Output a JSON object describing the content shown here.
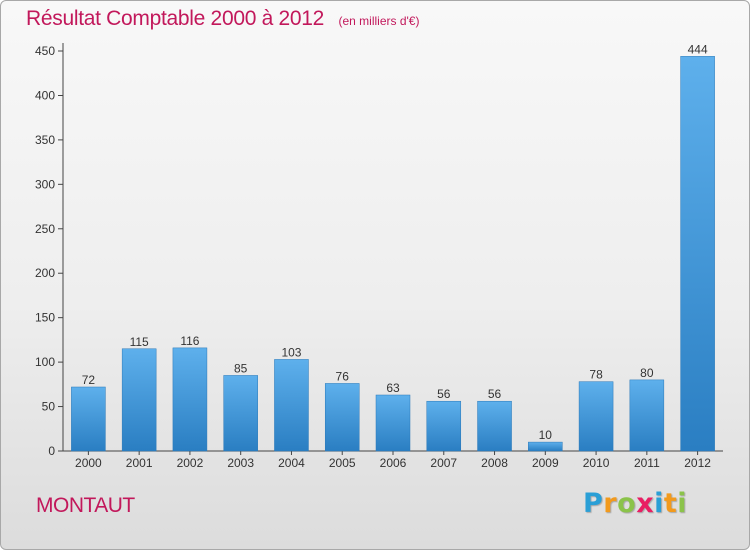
{
  "chart_data": {
    "type": "bar",
    "title": "Résultat Comptable 2000 à 2012",
    "subtitle": "(en milliers d'€)",
    "categories": [
      "2000",
      "2001",
      "2002",
      "2003",
      "2004",
      "2005",
      "2006",
      "2007",
      "2008",
      "2009",
      "2010",
      "2011",
      "2012"
    ],
    "values": [
      72,
      115,
      116,
      85,
      103,
      76,
      63,
      56,
      56,
      10,
      78,
      80,
      444
    ],
    "yticks": [
      0,
      50,
      100,
      150,
      200,
      250,
      300,
      350,
      400,
      450
    ],
    "ylim": [
      0,
      450
    ],
    "xlabel": "",
    "ylabel": "",
    "grid": false,
    "colors": {
      "bar_light": "#5eb0ec",
      "bar_dark": "#2a7ec2",
      "title": "#c2185b",
      "axis": "#444444"
    }
  },
  "footer": {
    "commune": "MONTAUT",
    "brand": {
      "letters": [
        "P",
        "r",
        "o",
        "x",
        "i",
        "t",
        "i"
      ],
      "colors": [
        "#2a9fd6",
        "#f29a1d",
        "#8bc34a",
        "#e91e63",
        "#2a9fd6",
        "#f29a1d",
        "#8bc34a"
      ]
    }
  }
}
